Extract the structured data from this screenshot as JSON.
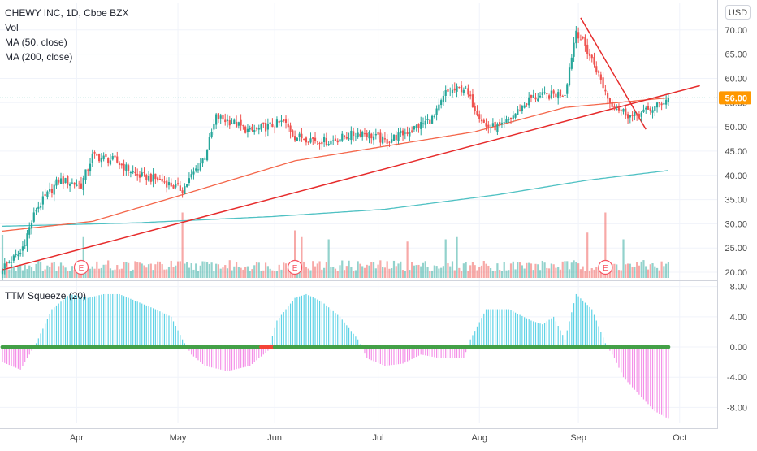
{
  "header": {
    "title": "CHEWY INC, 1D, Cboe BZX",
    "vol_label": "Vol",
    "ma50_label": "MA (50, close)",
    "ma200_label": "MA (200, close)",
    "currency_button": "USD",
    "oscillator_label": "TTM Squeeze (20)"
  },
  "colors": {
    "up": "#26a69a",
    "down": "#ef5350",
    "ma50": "#f4664a",
    "ma200": "#4fc1c3",
    "trend": "#e62b2b",
    "squeeze_pos": "#5fd3e6",
    "squeeze_neg": "#f48fe8",
    "dot_on": "#43a047",
    "dot_off": "#f44336",
    "price_tag": "#ff9800"
  },
  "chart_data": [
    {
      "type": "candlestick",
      "title": "CHEWY INC, 1D, Cboe BZX",
      "y_ticks": [
        "20.00",
        "25.00",
        "30.00",
        "35.00",
        "40.00",
        "45.00",
        "50.00",
        "55.00",
        "60.00",
        "65.00",
        "70.00"
      ],
      "x_ticks": [
        "Apr",
        "May",
        "Jun",
        "Jul",
        "Aug",
        "Sep",
        "Oct"
      ],
      "ylim": [
        18.5,
        75.5
      ],
      "last_price": "56.00",
      "series": [
        {
          "name": "CHEWY INC",
          "close_points": [
            [
              0,
              21
            ],
            [
              8,
              24
            ],
            [
              15,
              33
            ],
            [
              25,
              39
            ],
            [
              35,
              38
            ],
            [
              40,
              44
            ],
            [
              50,
              43
            ],
            [
              60,
              40
            ],
            [
              70,
              39
            ],
            [
              80,
              37
            ],
            [
              90,
              44
            ],
            [
              95,
              52
            ],
            [
              102,
              51
            ],
            [
              110,
              49
            ],
            [
              125,
              51
            ],
            [
              130,
              48
            ],
            [
              145,
              47
            ],
            [
              160,
              49
            ],
            [
              170,
              47
            ],
            [
              180,
              49
            ],
            [
              192,
              52
            ],
            [
              197,
              57
            ],
            [
              205,
              58
            ],
            [
              215,
              50
            ],
            [
              222,
              50
            ],
            [
              235,
              56
            ],
            [
              250,
              57
            ],
            [
              255,
              70
            ],
            [
              263,
              63
            ],
            [
              270,
              55
            ],
            [
              280,
              52
            ],
            [
              290,
              54
            ],
            [
              296,
              56
            ]
          ]
        },
        {
          "name": "MA (50, close)",
          "points": [
            [
              0,
              28.5
            ],
            [
              40,
              30.5
            ],
            [
              80,
              36
            ],
            [
              130,
              43
            ],
            [
              170,
              46
            ],
            [
              210,
              49
            ],
            [
              250,
              54
            ],
            [
              296,
              56
            ]
          ]
        },
        {
          "name": "MA (200, close)",
          "points": [
            [
              0,
              29.5
            ],
            [
              60,
              30.2
            ],
            [
              120,
              31.5
            ],
            [
              170,
              33
            ],
            [
              220,
              36
            ],
            [
              260,
              39
            ],
            [
              296,
              41
            ]
          ]
        }
      ],
      "trendlines": [
        {
          "from": [
            0,
            20.5
          ],
          "to": [
            310,
            58.5
          ]
        },
        {
          "from": [
            257,
            72.5
          ],
          "to": [
            286,
            49.5
          ]
        }
      ],
      "earnings_markers": [
        {
          "x": 35,
          "label": "E"
        },
        {
          "x": 130,
          "label": "E"
        },
        {
          "x": 268,
          "label": "E"
        }
      ]
    },
    {
      "type": "bar",
      "title": "TTM Squeeze (20)",
      "y_ticks": [
        "8.00",
        "4.00",
        "0.00",
        "-4.00",
        "-8.00"
      ],
      "ylim": [
        -10,
        8.5
      ],
      "series": [
        {
          "name": "TTM Squeeze (20)",
          "points": [
            [
              0,
              -2
            ],
            [
              8,
              -3
            ],
            [
              15,
              0.5
            ],
            [
              22,
              5
            ],
            [
              30,
              7
            ],
            [
              38,
              6.5
            ],
            [
              45,
              7
            ],
            [
              52,
              7
            ],
            [
              60,
              6
            ],
            [
              68,
              5
            ],
            [
              75,
              4
            ],
            [
              80,
              1
            ],
            [
              84,
              -1
            ],
            [
              90,
              -2.5
            ],
            [
              100,
              -3.2
            ],
            [
              110,
              -2.5
            ],
            [
              118,
              -0.5
            ],
            [
              122,
              3.5
            ],
            [
              130,
              6.5
            ],
            [
              135,
              7
            ],
            [
              142,
              6
            ],
            [
              150,
              4
            ],
            [
              158,
              1
            ],
            [
              162,
              -1.5
            ],
            [
              170,
              -2.5
            ],
            [
              178,
              -2.2
            ],
            [
              186,
              -1
            ],
            [
              195,
              -1.5
            ],
            [
              205,
              -1.5
            ],
            [
              208,
              1
            ],
            [
              215,
              5
            ],
            [
              225,
              5
            ],
            [
              235,
              3.5
            ],
            [
              240,
              3
            ],
            [
              245,
              4
            ],
            [
              250,
              1
            ],
            [
              255,
              7
            ],
            [
              262,
              5
            ],
            [
              268,
              0.5
            ],
            [
              272,
              -1.5
            ],
            [
              276,
              -4
            ],
            [
              282,
              -6
            ],
            [
              290,
              -8.5
            ],
            [
              296,
              -9.5
            ]
          ]
        }
      ]
    }
  ]
}
